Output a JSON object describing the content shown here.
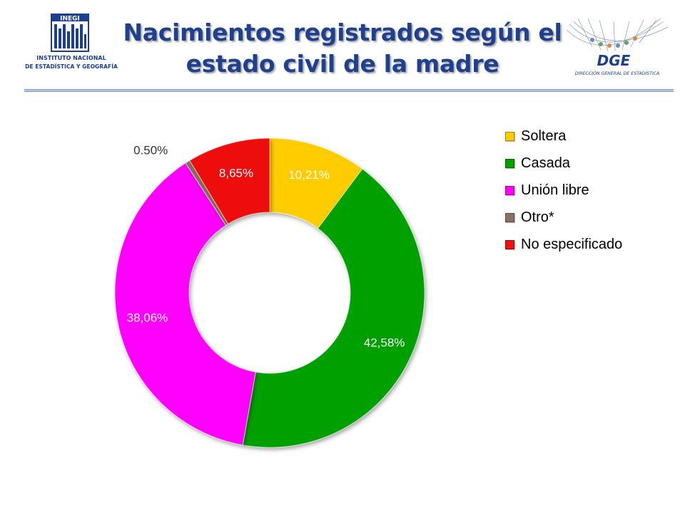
{
  "header": {
    "title_line1": "Nacimientos registrados según el",
    "title_line2": "estado civil de la madre",
    "inegi_logo": {
      "mark": "INEGI",
      "line1": "INSTITUTO NACIONAL",
      "line2": "DE ESTADÍSTICA Y GEOGRAFÍA"
    },
    "dge_logo": {
      "mark": "DGE",
      "subtitle": "DIRECCIÓN GENERAL DE ESTADÍSTICA"
    }
  },
  "colors": {
    "title": "#1f3f8f",
    "soltera": "#ffcc00",
    "casada": "#00a000",
    "union_libre": "#ff00ff",
    "otro": "#8c7060",
    "no_especificado": "#ee1010"
  },
  "chart_data": {
    "type": "pie",
    "donut": true,
    "title": "Nacimientos registrados según el estado civil de la madre",
    "legend_position": "right",
    "series": [
      {
        "name": "Soltera",
        "value": 10.21,
        "label": "10,21%",
        "color": "#ffcc00",
        "label_color": "#ffffff"
      },
      {
        "name": "Casada",
        "value": 42.58,
        "label": "42,58%",
        "color": "#00a000",
        "label_color": "#ffffff"
      },
      {
        "name": "Unión libre",
        "value": 38.06,
        "label": "38,06%",
        "color": "#ff00ff",
        "label_color": "#ffffff"
      },
      {
        "name": "Otro*",
        "value": 0.5,
        "label": "0.50%",
        "color": "#8c7060",
        "label_color": "#333333"
      },
      {
        "name": "No especificado",
        "value": 8.65,
        "label": "8,65%",
        "color": "#ee1010",
        "label_color": "#ffffff"
      }
    ]
  }
}
